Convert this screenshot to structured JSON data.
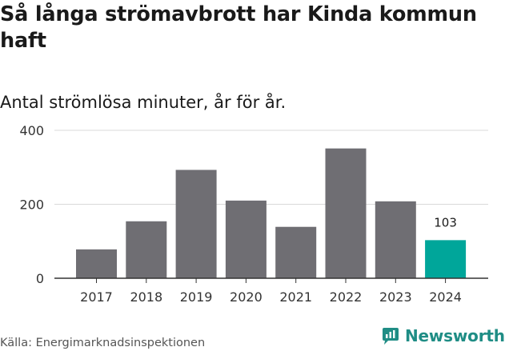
{
  "title": "Så långa strömavbrott har Kinda kommun haft",
  "subtitle": "Antal strömlösa minuter, år för år.",
  "source": "Källa: Energimarknadsinspektionen",
  "brand": {
    "name": "Newsworthy",
    "icon": "newsworthy-logo-icon",
    "color": "#1f8d85"
  },
  "colors": {
    "bar": "#6f6e73",
    "highlight": "#00a69a",
    "axis": "#333333",
    "grid": "#d9d9d9"
  },
  "chart_data": {
    "type": "bar",
    "title": "Så långa strömavbrott har Kinda kommun haft",
    "subtitle": "Antal strömlösa minuter, år för år.",
    "xlabel": "",
    "ylabel": "",
    "categories": [
      "2017",
      "2018",
      "2019",
      "2020",
      "2021",
      "2022",
      "2023",
      "2024"
    ],
    "values": [
      78,
      154,
      293,
      210,
      139,
      351,
      208,
      103
    ],
    "highlight_index": 7,
    "data_labels": [
      {
        "index": 7,
        "text": "103"
      }
    ],
    "ylim": [
      0,
      400
    ],
    "yticks": [
      0,
      200,
      400
    ],
    "grid": true
  }
}
